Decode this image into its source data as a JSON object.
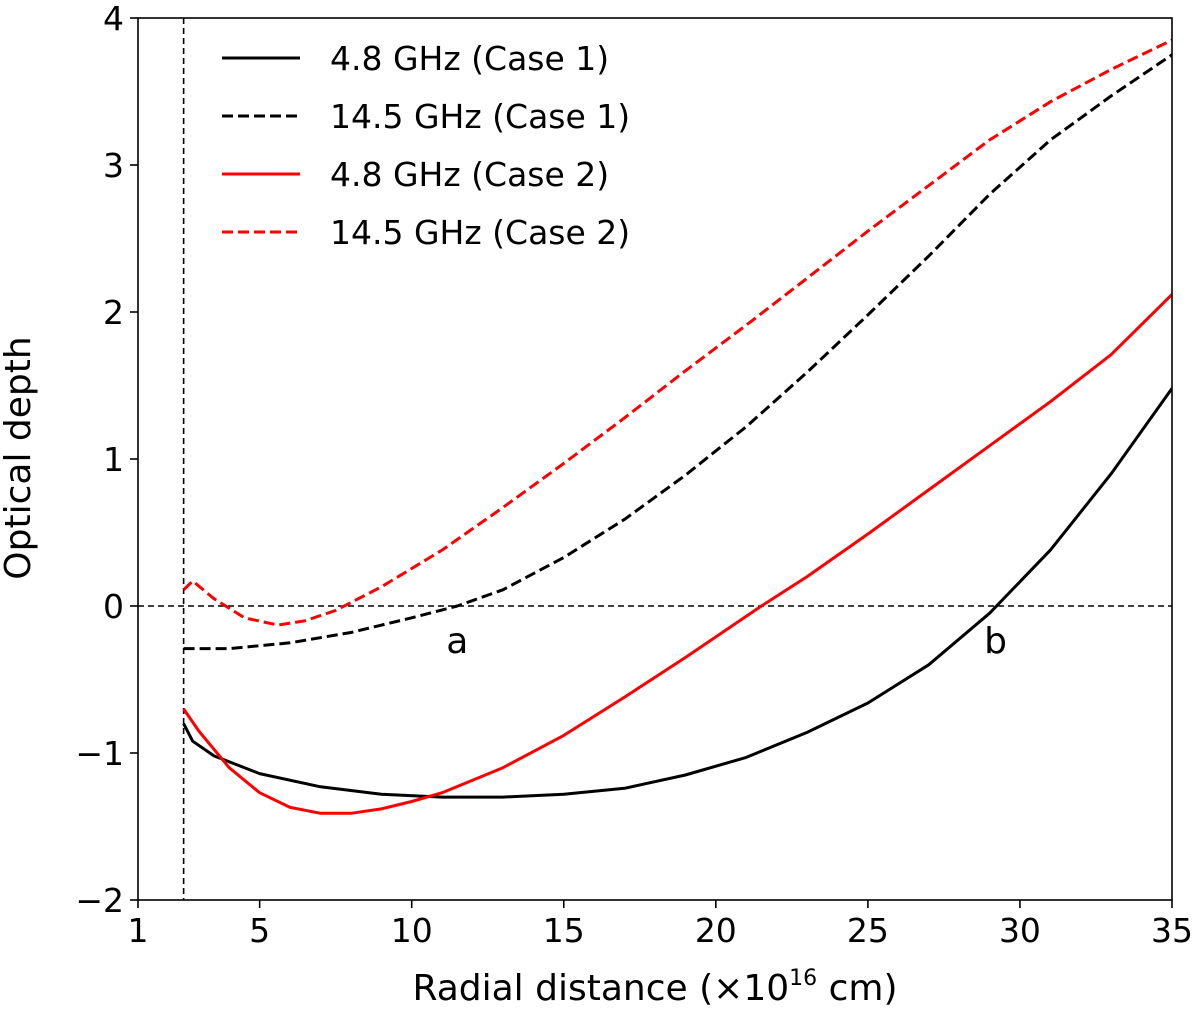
{
  "chart_data": {
    "type": "line",
    "title": "",
    "xlabel_main": "Radial distance (×10",
    "xlabel_exp": "16",
    "xlabel_tail": " cm)",
    "ylabel": "Optical depth",
    "xlim": [
      1,
      35
    ],
    "ylim": [
      -2,
      4
    ],
    "xticks": [
      1,
      5,
      10,
      15,
      20,
      25,
      30,
      35
    ],
    "xtick_labels": [
      "1",
      "5",
      "10",
      "15",
      "20",
      "25",
      "30",
      "35"
    ],
    "yticks": [
      -2,
      -1,
      0,
      1,
      2,
      3,
      4
    ],
    "ytick_labels": [
      "−2",
      "−1",
      "0",
      "1",
      "2",
      "3",
      "4"
    ],
    "legend_position": "top-left",
    "reference_lines": [
      {
        "orientation": "horizontal",
        "value": 0,
        "style": "dashed",
        "color": "#000000"
      },
      {
        "orientation": "vertical",
        "value": 2.5,
        "style": "dashed",
        "color": "#000000"
      }
    ],
    "annotations": [
      {
        "text": "a",
        "x": 11.5,
        "y": -0.15
      },
      {
        "text": "b",
        "x": 29.2,
        "y": -0.15
      }
    ],
    "series": [
      {
        "name": "4.8 GHz (Case 1)",
        "color": "#000000",
        "dash": "solid",
        "x": [
          2.5,
          2.8,
          3.5,
          5,
          7,
          9,
          11,
          13,
          15,
          17,
          19,
          21,
          23,
          25,
          27,
          29,
          31,
          33,
          35
        ],
        "y": [
          -0.8,
          -0.92,
          -1.02,
          -1.14,
          -1.23,
          -1.28,
          -1.3,
          -1.3,
          -1.28,
          -1.24,
          -1.15,
          -1.03,
          -0.86,
          -0.66,
          -0.4,
          -0.05,
          0.38,
          0.9,
          1.48
        ]
      },
      {
        "name": "14.5 GHz (Case 1)",
        "color": "#000000",
        "dash": "dashed",
        "x": [
          2.5,
          4,
          6,
          8,
          10,
          11.5,
          13,
          15,
          17,
          19,
          21,
          23,
          25,
          27,
          29,
          31,
          33,
          35
        ],
        "y": [
          -0.29,
          -0.29,
          -0.25,
          -0.18,
          -0.08,
          0.0,
          0.11,
          0.33,
          0.59,
          0.89,
          1.22,
          1.59,
          1.98,
          2.38,
          2.8,
          3.17,
          3.47,
          3.75
        ]
      },
      {
        "name": "4.8 GHz (Case 2)",
        "color": "#ff0000",
        "dash": "solid",
        "x": [
          2.5,
          3,
          4,
          5,
          6,
          7,
          8,
          9,
          10,
          11,
          13,
          15,
          17,
          19,
          21.5,
          23,
          25,
          27,
          29,
          31,
          33,
          35
        ],
        "y": [
          -0.7,
          -0.85,
          -1.1,
          -1.27,
          -1.37,
          -1.41,
          -1.41,
          -1.38,
          -1.33,
          -1.27,
          -1.1,
          -0.88,
          -0.62,
          -0.35,
          0.0,
          0.2,
          0.49,
          0.79,
          1.09,
          1.39,
          1.71,
          2.12
        ]
      },
      {
        "name": "14.5 GHz (Case 2)",
        "color": "#ff0000",
        "dash": "dashed",
        "x": [
          2.5,
          2.8,
          3.5,
          4.5,
          5.6,
          6.5,
          7.5,
          9,
          11,
          13,
          15,
          17,
          19,
          21,
          23,
          25,
          27,
          29,
          31,
          33,
          35
        ],
        "y": [
          0.11,
          0.17,
          0.05,
          -0.08,
          -0.13,
          -0.1,
          -0.03,
          0.13,
          0.38,
          0.67,
          0.97,
          1.28,
          1.6,
          1.91,
          2.23,
          2.55,
          2.86,
          3.17,
          3.43,
          3.65,
          3.85
        ]
      }
    ]
  }
}
